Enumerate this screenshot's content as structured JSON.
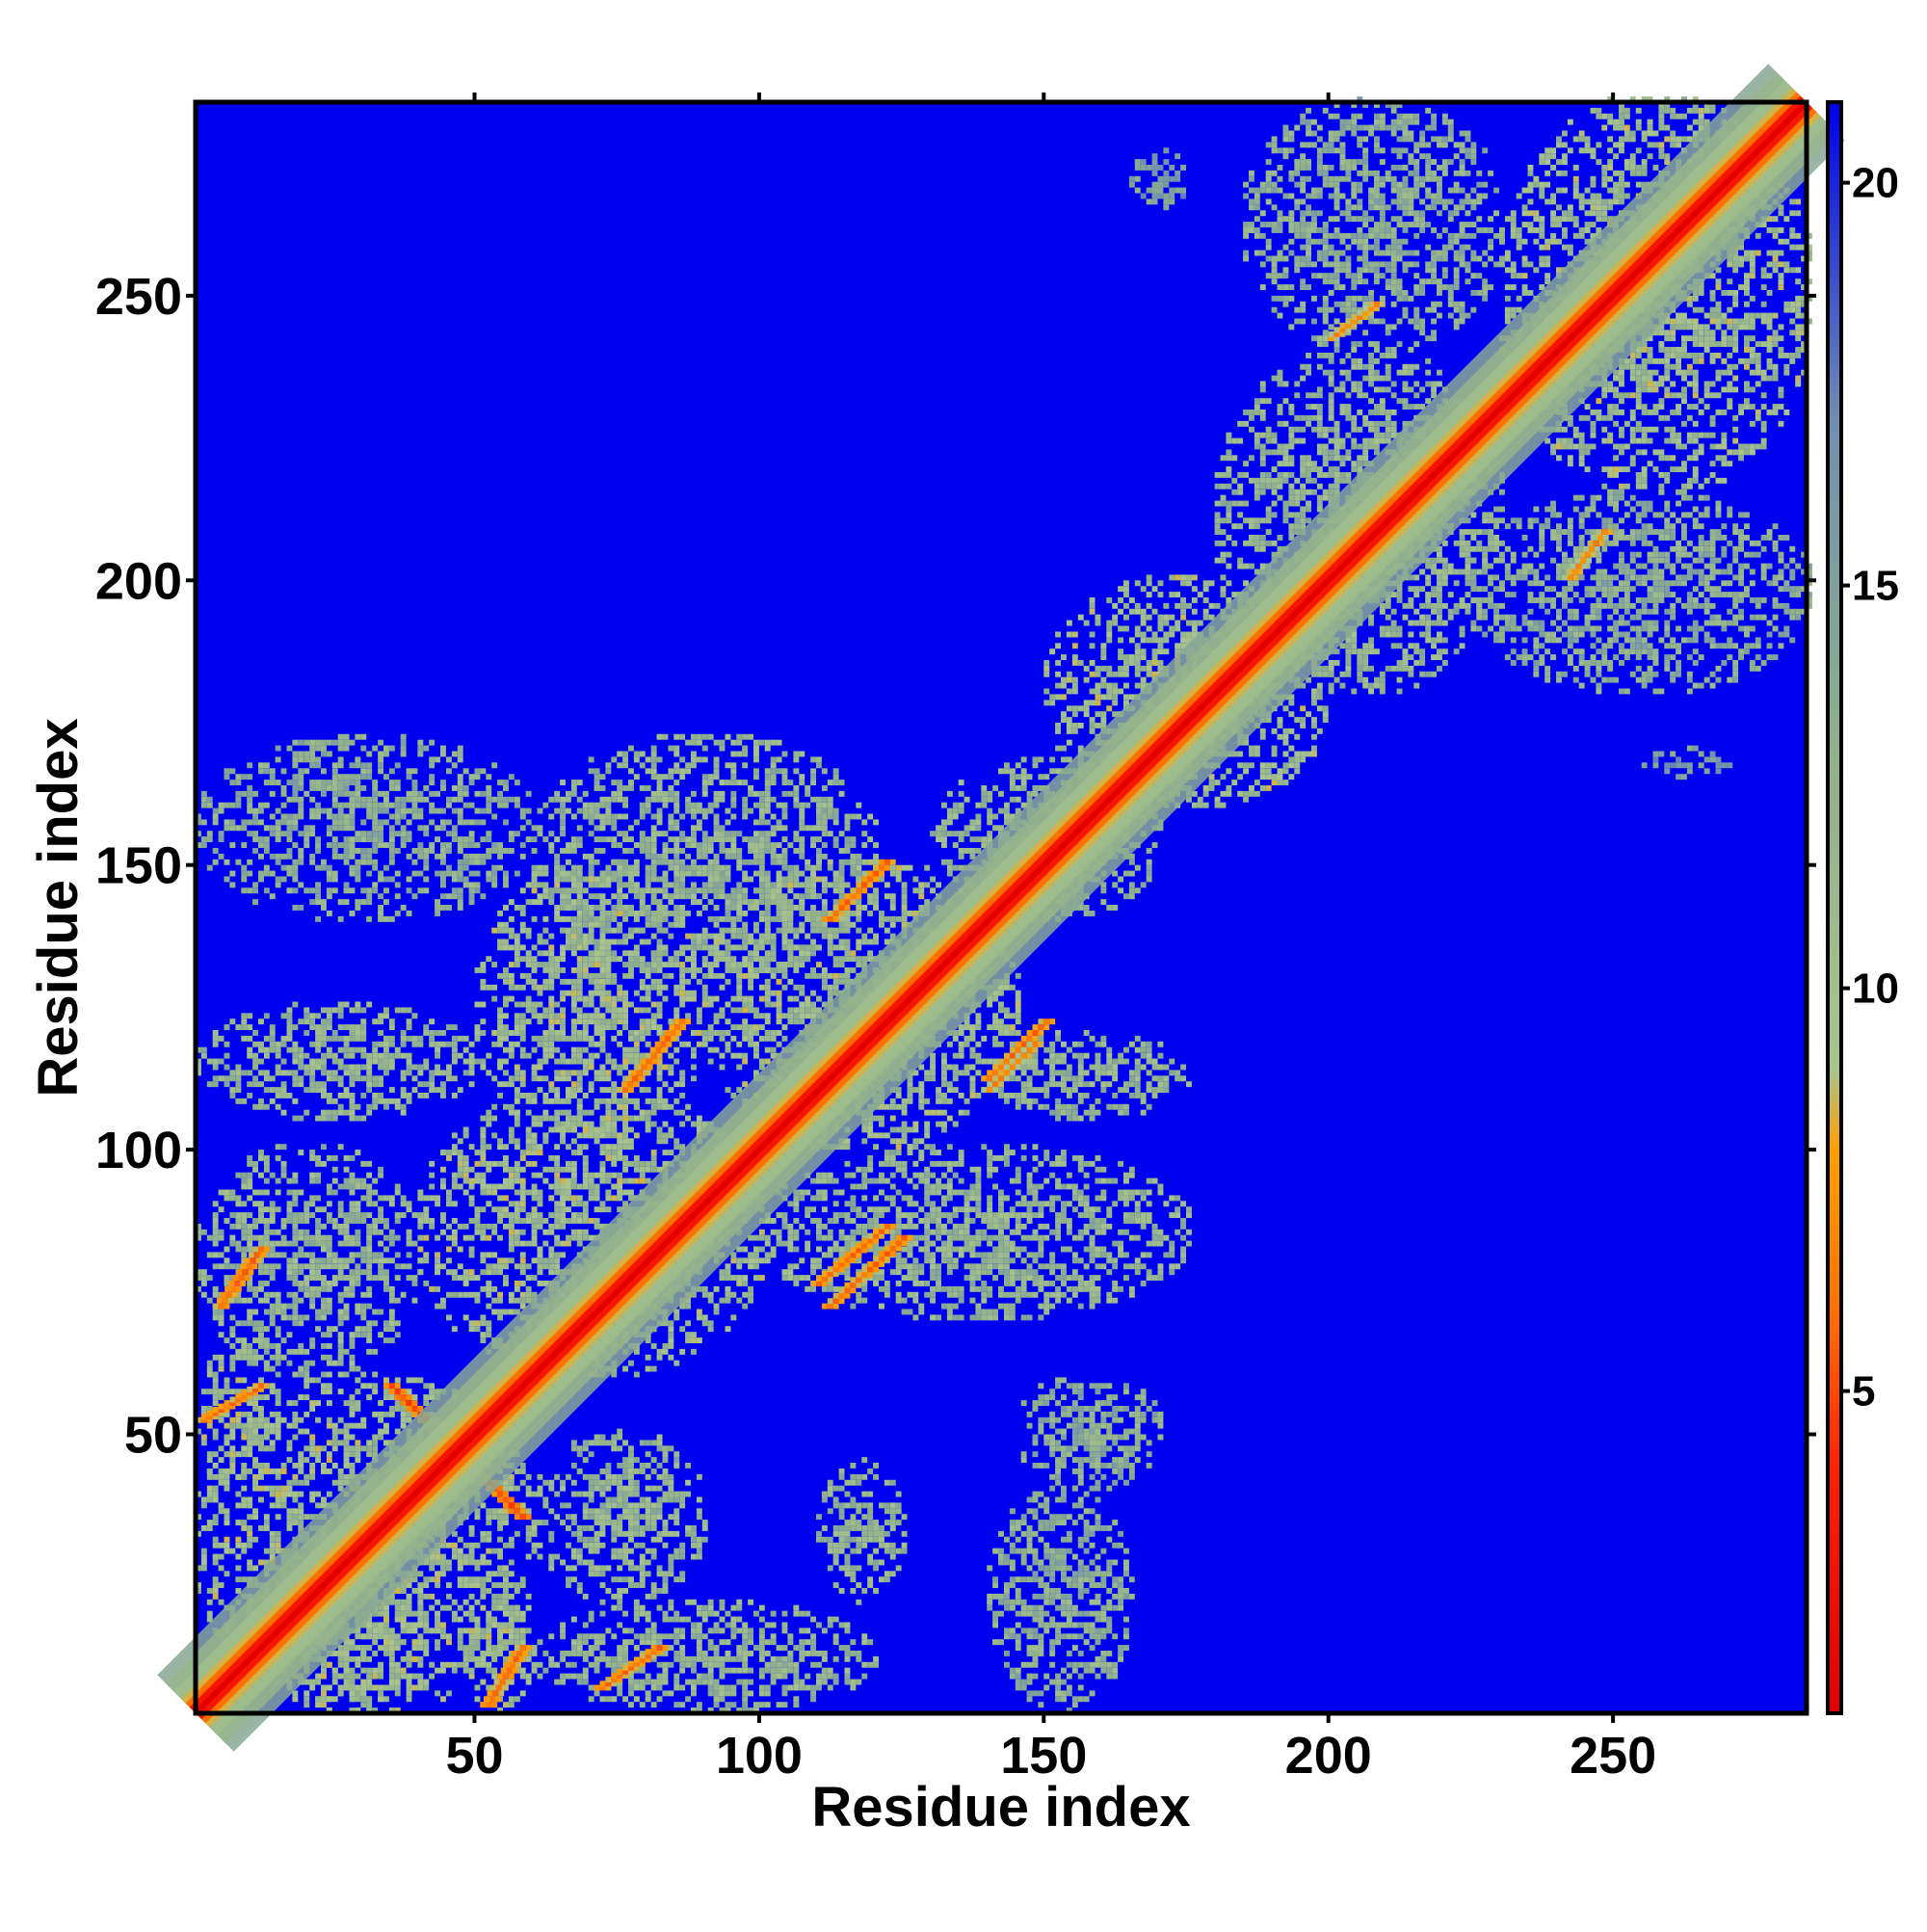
{
  "chart_data": {
    "type": "heatmap",
    "title": "",
    "xlabel": "Residue index",
    "ylabel": "Residue index",
    "xlim": [
      1,
      284
    ],
    "ylim": [
      1,
      284
    ],
    "x_ticks": [
      50,
      100,
      150,
      200,
      250
    ],
    "y_ticks": [
      50,
      100,
      150,
      200,
      250
    ],
    "x_tick_labels": [
      "50",
      "100",
      "150",
      "200",
      "250"
    ],
    "y_tick_labels": [
      "50",
      "100",
      "150",
      "200",
      "250"
    ],
    "grid": false,
    "legend": "colorbar-right",
    "colorbar": {
      "range": [
        1,
        21
      ],
      "ticks": [
        5,
        10,
        15,
        20
      ],
      "tick_labels": [
        "5",
        "10",
        "15",
        "20"
      ],
      "colors": [
        {
          "value": 1,
          "color": "#e00000"
        },
        {
          "value": 4,
          "color": "#ff2000"
        },
        {
          "value": 6,
          "color": "#ff7000"
        },
        {
          "value": 8,
          "color": "#ffa000"
        },
        {
          "value": 9,
          "color": "#a9c48c"
        },
        {
          "value": 13,
          "color": "#90b08c"
        },
        {
          "value": 17,
          "color": "#7090b0"
        },
        {
          "value": 21,
          "color": "#0000f0"
        }
      ]
    },
    "background_color": "#0000f0",
    "diagonal_band": {
      "from": 1,
      "to": 284
    },
    "contact_regions": [
      {
        "x": [
          1,
          60
        ],
        "y": [
          1,
          60
        ],
        "value": 11
      },
      {
        "x": [
          1,
          15
        ],
        "y": [
          40,
          65
        ],
        "value": 11
      },
      {
        "x": [
          15,
          40
        ],
        "y": [
          1,
          30
        ],
        "value": 11
      },
      {
        "x": [
          48,
          60
        ],
        "y": [
          1,
          20
        ],
        "value": 11
      },
      {
        "x": [
          60,
          120
        ],
        "y": [
          1,
          20
        ],
        "value": 12
      },
      {
        "x": [
          60,
          90
        ],
        "y": [
          20,
          50
        ],
        "value": 12
      },
      {
        "x": [
          110,
          125
        ],
        "y": [
          20,
          45
        ],
        "value": 12
      },
      {
        "x": [
          140,
          165
        ],
        "y": [
          1,
          40
        ],
        "value": 13
      },
      {
        "x": [
          145,
          170
        ],
        "y": [
          40,
          60
        ],
        "value": 13
      },
      {
        "x": [
          1,
          40
        ],
        "y": [
          60,
          100
        ],
        "value": 12
      },
      {
        "x": [
          40,
          100
        ],
        "y": [
          60,
          110
        ],
        "value": 11
      },
      {
        "x": [
          100,
          175
        ],
        "y": [
          70,
          100
        ],
        "value": 12
      },
      {
        "x": [
          1,
          50
        ],
        "y": [
          105,
          125
        ],
        "value": 12
      },
      {
        "x": [
          50,
          90
        ],
        "y": [
          100,
          150
        ],
        "value": 11
      },
      {
        "x": [
          90,
          145
        ],
        "y": [
          100,
          150
        ],
        "value": 11
      },
      {
        "x": [
          140,
          175
        ],
        "y": [
          105,
          120
        ],
        "value": 12
      },
      {
        "x": [
          1,
          60
        ],
        "y": [
          140,
          172
        ],
        "value": 13
      },
      {
        "x": [
          60,
          120
        ],
        "y": [
          130,
          172
        ],
        "value": 12
      },
      {
        "x": [
          130,
          170
        ],
        "y": [
          140,
          168
        ],
        "value": 12
      },
      {
        "x": [
          150,
          200
        ],
        "y": [
          160,
          200
        ],
        "value": 11
      },
      {
        "x": [
          180,
          230
        ],
        "y": [
          180,
          240
        ],
        "value": 12
      },
      {
        "x": [
          185,
          230
        ],
        "y": [
          240,
          284
        ],
        "value": 13
      },
      {
        "x": [
          225,
          284
        ],
        "y": [
          180,
          215
        ],
        "value": 13
      },
      {
        "x": [
          230,
          284
        ],
        "y": [
          215,
          284
        ],
        "value": 11
      },
      {
        "x": [
          165,
          175
        ],
        "y": [
          265,
          275
        ],
        "value": 15
      },
      {
        "x": [
          255,
          270
        ],
        "y": [
          165,
          170
        ],
        "value": 15
      }
    ],
    "close_contacts": [
      {
        "x": [
          35,
          58
        ],
        "y": [
          58,
          35
        ],
        "value": 5
      },
      {
        "x": [
          2,
          12
        ],
        "y": [
          52,
          58
        ],
        "value": 6
      },
      {
        "x": [
          52,
          58
        ],
        "y": [
          2,
          12
        ],
        "value": 6
      },
      {
        "x": [
          72,
          82
        ],
        "y": [
          5,
          12
        ],
        "value": 6
      },
      {
        "x": [
          5,
          12
        ],
        "y": [
          72,
          82
        ],
        "value": 6
      },
      {
        "x": [
          76,
          86
        ],
        "y": [
          110,
          122
        ],
        "value": 6
      },
      {
        "x": [
          110,
          122
        ],
        "y": [
          76,
          86
        ],
        "value": 6
      },
      {
        "x": [
          112,
          122
        ],
        "y": [
          140,
          150
        ],
        "value": 6
      },
      {
        "x": [
          140,
          150
        ],
        "y": [
          112,
          122
        ],
        "value": 6
      },
      {
        "x": [
          112,
          125
        ],
        "y": [
          72,
          84
        ],
        "value": 6
      },
      {
        "x": [
          140,
          148
        ],
        "y": [
          110,
          118
        ],
        "value": 7
      },
      {
        "x": [
          242,
          248
        ],
        "y": [
          200,
          208
        ],
        "value": 7
      },
      {
        "x": [
          200,
          208
        ],
        "y": [
          242,
          248
        ],
        "value": 7
      },
      {
        "x": [
          195,
          202
        ],
        "y": [
          190,
          198
        ],
        "value": 7
      }
    ]
  }
}
